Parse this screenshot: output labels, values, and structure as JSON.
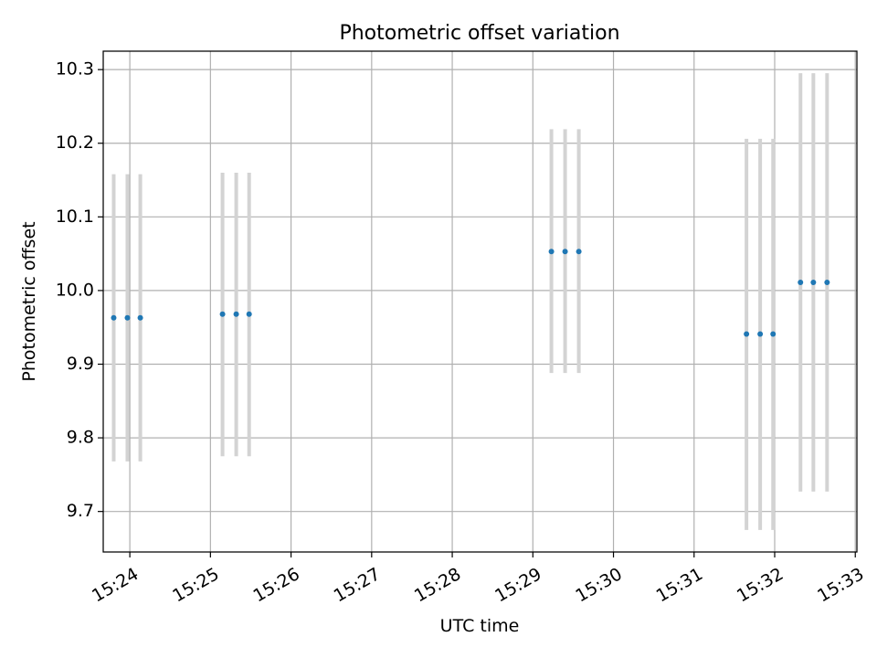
{
  "chart_data": {
    "type": "scatter",
    "title": "Photometric offset variation",
    "xlabel": "UTC time",
    "ylabel": "Photometric offset",
    "grid": true,
    "xlim_minutes": [
      23.67,
      33.02
    ],
    "ylim": [
      9.645,
      10.325
    ],
    "x_ticks": [
      {
        "minute": 24,
        "label": "15:24"
      },
      {
        "minute": 25,
        "label": "15:25"
      },
      {
        "minute": 26,
        "label": "15:26"
      },
      {
        "minute": 27,
        "label": "15:27"
      },
      {
        "minute": 28,
        "label": "15:28"
      },
      {
        "minute": 29,
        "label": "15:29"
      },
      {
        "minute": 30,
        "label": "15:30"
      },
      {
        "minute": 31,
        "label": "15:31"
      },
      {
        "minute": 32,
        "label": "15:32"
      },
      {
        "minute": 33,
        "label": "15:33"
      }
    ],
    "y_ticks": [
      {
        "value": 9.7,
        "label": "9.7"
      },
      {
        "value": 9.8,
        "label": "9.8"
      },
      {
        "value": 9.9,
        "label": "9.9"
      },
      {
        "value": 10.0,
        "label": "10.0"
      },
      {
        "value": 10.1,
        "label": "10.1"
      },
      {
        "value": 10.2,
        "label": "10.2"
      },
      {
        "value": 10.3,
        "label": "10.3"
      }
    ],
    "point_color": "#1f77b4",
    "errorbar_color": "#d3d3d3",
    "points": [
      {
        "minute": 23.8,
        "y": 9.963,
        "ylow": 9.768,
        "yhigh": 10.158
      },
      {
        "minute": 23.97,
        "y": 9.963,
        "ylow": 9.768,
        "yhigh": 10.158
      },
      {
        "minute": 24.13,
        "y": 9.963,
        "ylow": 9.768,
        "yhigh": 10.158
      },
      {
        "minute": 25.15,
        "y": 9.968,
        "ylow": 9.775,
        "yhigh": 10.16
      },
      {
        "minute": 25.32,
        "y": 9.968,
        "ylow": 9.775,
        "yhigh": 10.16
      },
      {
        "minute": 25.48,
        "y": 9.968,
        "ylow": 9.775,
        "yhigh": 10.16
      },
      {
        "minute": 29.23,
        "y": 10.053,
        "ylow": 9.888,
        "yhigh": 10.219
      },
      {
        "minute": 29.4,
        "y": 10.053,
        "ylow": 9.888,
        "yhigh": 10.219
      },
      {
        "minute": 29.57,
        "y": 10.053,
        "ylow": 9.888,
        "yhigh": 10.219
      },
      {
        "minute": 31.65,
        "y": 9.941,
        "ylow": 9.675,
        "yhigh": 10.206
      },
      {
        "minute": 31.82,
        "y": 9.941,
        "ylow": 9.675,
        "yhigh": 10.206
      },
      {
        "minute": 31.98,
        "y": 9.941,
        "ylow": 9.675,
        "yhigh": 10.206
      },
      {
        "minute": 32.32,
        "y": 10.011,
        "ylow": 9.727,
        "yhigh": 10.295
      },
      {
        "minute": 32.48,
        "y": 10.011,
        "ylow": 9.727,
        "yhigh": 10.295
      },
      {
        "minute": 32.65,
        "y": 10.011,
        "ylow": 9.727,
        "yhigh": 10.295
      }
    ]
  }
}
